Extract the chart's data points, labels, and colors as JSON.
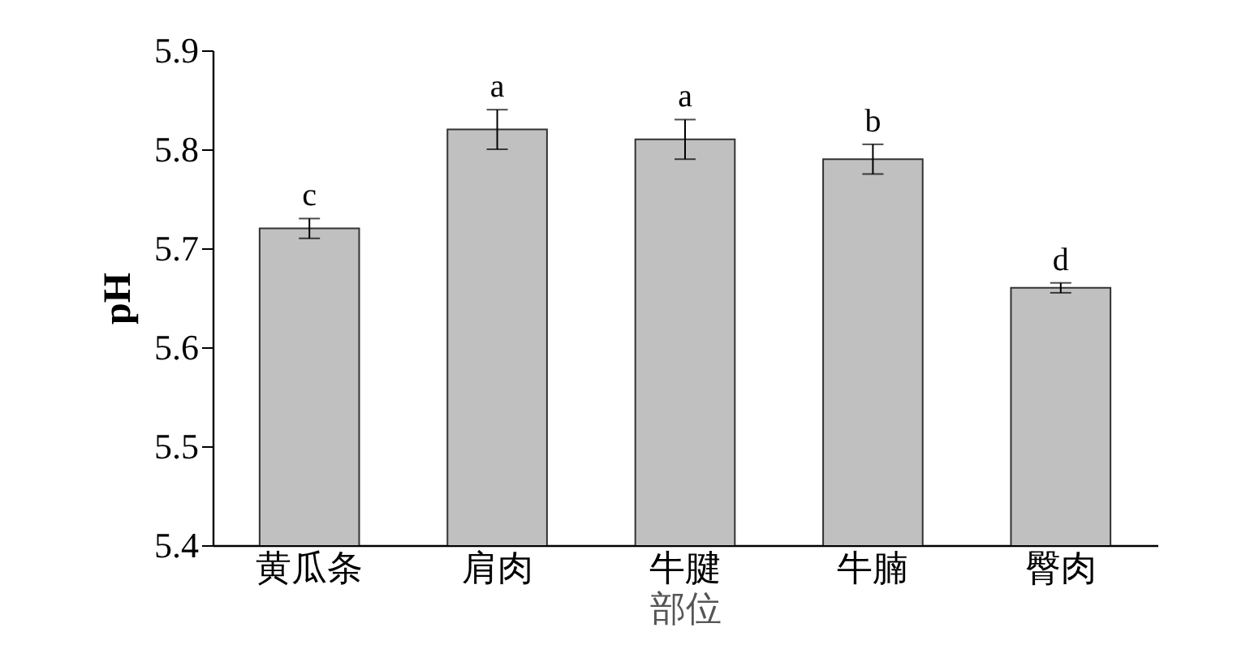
{
  "chart_data": {
    "type": "bar",
    "xlabel": "部位",
    "ylabel": "pH",
    "categories": [
      "黄瓜条",
      "肩肉",
      "牛腱",
      "牛腩",
      "臀肉"
    ],
    "values": [
      5.72,
      5.82,
      5.81,
      5.79,
      5.66
    ],
    "errors": [
      0.01,
      0.02,
      0.02,
      0.015,
      0.005
    ],
    "color": "#c0c0c0",
    "ylim": [
      5.4,
      5.9
    ],
    "yticks": [
      5.4,
      5.5,
      5.6,
      5.7,
      5.8,
      5.9
    ],
    "grid": false,
    "annotations": [
      {
        "text": "c",
        "x": "黄瓜条",
        "y": 5.73
      },
      {
        "text": "a",
        "x": "肩肉",
        "y": 5.84
      },
      {
        "text": "a",
        "x": "牛腱",
        "y": 5.83
      },
      {
        "text": "b",
        "x": "牛腩",
        "y": 5.805
      },
      {
        "text": "d",
        "x": "臀肉",
        "y": 5.665
      }
    ]
  }
}
